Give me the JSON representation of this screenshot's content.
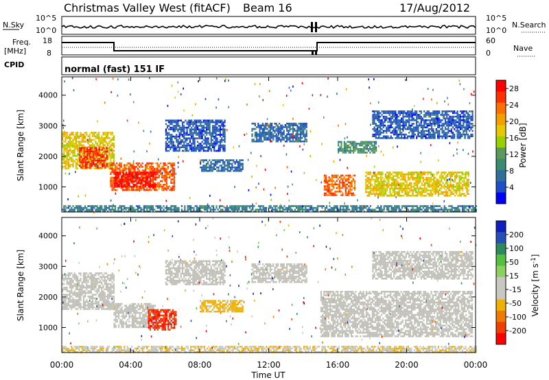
{
  "header": {
    "title": "Christmas Valley West (fitACF)",
    "beam": "Beam 16",
    "date": "17/Aug/2012"
  },
  "panels": {
    "nsky": {
      "left_label": "N.Sky",
      "right_label": "N.Search",
      "left_ticks": [
        "10^5",
        "10^0"
      ],
      "right_ticks": [
        "10^5",
        "10^0"
      ]
    },
    "freq": {
      "left_label_1": "Freq.",
      "left_label_2": "[MHz]",
      "right_label": "Nave",
      "left_ticks": [
        "18",
        "8"
      ],
      "right_ticks": [
        "60",
        "0"
      ]
    },
    "cpid": {
      "label": "CPID",
      "text": "normal (fast) 151 IF"
    }
  },
  "colors": {
    "power_scale": [
      "#0000ff",
      "#1e4fc8",
      "#2f6f9a",
      "#3a8c6e",
      "#5a9a5a",
      "#99d000",
      "#e8c800",
      "#f2a000",
      "#ff7000",
      "#ff3000",
      "#ff0000"
    ],
    "velocity_scale": [
      "#1020c0",
      "#2450b8",
      "#2f8a5a",
      "#55c040",
      "#8cd060",
      "#c8c8c0",
      "#c8c8c0",
      "#f0b000",
      "#f07a00",
      "#f04000",
      "#ff0000"
    ],
    "ground_scatter": "#c0c0b8"
  },
  "chart_data": [
    {
      "type": "heatmap",
      "title": "Power",
      "xlabel": "Time UT",
      "ylabel": "Slant Range [km]",
      "x_ticks": [
        "00:00",
        "04:00",
        "08:00",
        "12:00",
        "16:00",
        "20:00",
        "00:00"
      ],
      "y_ticks": [
        "1000",
        "2000",
        "3000",
        "4000"
      ],
      "xlim": [
        0,
        24
      ],
      "ylim": [
        180,
        4600
      ],
      "colorbar": {
        "label": "Power [dB]",
        "ticks": [
          "4",
          "8",
          "12",
          "16",
          "20",
          "24",
          "28"
        ],
        "range": [
          0,
          30
        ]
      },
      "echo_regions": [
        {
          "t": [
            0.0,
            3.0
          ],
          "range": [
            1600,
            2800
          ],
          "value": 18
        },
        {
          "t": [
            1.0,
            2.6
          ],
          "range": [
            1600,
            2300
          ],
          "value": 26
        },
        {
          "t": [
            2.8,
            6.5
          ],
          "range": [
            900,
            1800
          ],
          "value": 24
        },
        {
          "t": [
            3.0,
            5.4
          ],
          "range": [
            1000,
            1500
          ],
          "value": 29
        },
        {
          "t": [
            6.0,
            9.5
          ],
          "range": [
            2200,
            3200
          ],
          "value": 5
        },
        {
          "t": [
            8.0,
            10.5
          ],
          "range": [
            1500,
            1900
          ],
          "value": 6
        },
        {
          "t": [
            11.0,
            14.2
          ],
          "range": [
            2500,
            3100
          ],
          "value": 6
        },
        {
          "t": [
            15.2,
            17.0
          ],
          "range": [
            700,
            1400
          ],
          "value": 24
        },
        {
          "t": [
            16.0,
            18.2
          ],
          "range": [
            2100,
            2500
          ],
          "value": 10
        },
        {
          "t": [
            17.6,
            23.6
          ],
          "range": [
            700,
            1500
          ],
          "value": 18
        },
        {
          "t": [
            18.0,
            23.8
          ],
          "range": [
            2600,
            3500
          ],
          "value": 5
        },
        {
          "t": [
            0.0,
            24.0
          ],
          "range": [
            200,
            400
          ],
          "value": 8
        }
      ]
    },
    {
      "type": "heatmap",
      "title": "Velocity",
      "xlabel": "Time UT",
      "ylabel": "Slant Range [km]",
      "x_ticks": [
        "00:00",
        "04:00",
        "08:00",
        "12:00",
        "16:00",
        "20:00",
        "00:00"
      ],
      "y_ticks": [
        "1000",
        "2000",
        "3000",
        "4000"
      ],
      "xlim": [
        0,
        24
      ],
      "ylim": [
        180,
        4600
      ],
      "colorbar": {
        "label": "Velocity [m s^-1]",
        "ticks": [
          "200",
          "100",
          "50",
          "15",
          "-15",
          "-50",
          "-100",
          "-200"
        ],
        "range": [
          -250,
          250
        ]
      },
      "echo_regions": [
        {
          "t": [
            0.0,
            3.0
          ],
          "range": [
            1600,
            2800
          ],
          "value": 0,
          "ground_scatter": true
        },
        {
          "t": [
            3.0,
            5.4
          ],
          "range": [
            1000,
            1800
          ],
          "value": 0,
          "ground_scatter": true
        },
        {
          "t": [
            5.0,
            6.6
          ],
          "range": [
            900,
            1600
          ],
          "value": -200
        },
        {
          "t": [
            8.0,
            10.5
          ],
          "range": [
            1500,
            1900
          ],
          "value": -80
        },
        {
          "t": [
            6.0,
            9.5
          ],
          "range": [
            2400,
            3200
          ],
          "value": 0,
          "ground_scatter": true
        },
        {
          "t": [
            11.0,
            14.2
          ],
          "range": [
            2500,
            3100
          ],
          "value": 0,
          "ground_scatter": true
        },
        {
          "t": [
            15.0,
            23.8
          ],
          "range": [
            700,
            2200
          ],
          "value": 0,
          "ground_scatter": true
        },
        {
          "t": [
            18.0,
            23.8
          ],
          "range": [
            2600,
            3500
          ],
          "value": 0,
          "ground_scatter": true
        },
        {
          "t": [
            0.0,
            24.0
          ],
          "range": [
            200,
            400
          ],
          "value": -60
        }
      ]
    }
  ]
}
